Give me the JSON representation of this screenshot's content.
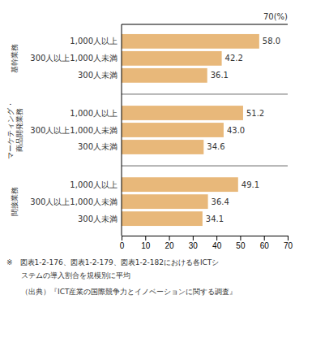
{
  "chart_data": {
    "type": "bar",
    "orientation": "horizontal",
    "groups": [
      {
        "label": "基幹業務",
        "categories": [
          "1,000人以上",
          "300人以上1,000人未満",
          "300人未満"
        ],
        "values": [
          58.0,
          42.2,
          36.1
        ],
        "value_labels": [
          "58.0",
          "42.2",
          "36.1"
        ]
      },
      {
        "label": "マーケティング・\n商品開発業務",
        "categories": [
          "1,000人以上",
          "300人以上1,000人未満",
          "300人未満"
        ],
        "values": [
          51.2,
          43.0,
          34.6
        ],
        "value_labels": [
          "51.2",
          "43.0",
          "34.6"
        ]
      },
      {
        "label": "間接業務",
        "categories": [
          "1,000人以上",
          "300人以上1,000人未満",
          "300人未満"
        ],
        "values": [
          49.1,
          36.4,
          34.1
        ],
        "value_labels": [
          "49.1",
          "36.4",
          "34.1"
        ]
      }
    ],
    "color": "#E8B87A",
    "data_labels": true,
    "xlim": [
      0,
      70
    ],
    "xticks": [
      0,
      10,
      20,
      30,
      40,
      50,
      60,
      70
    ],
    "annotations": [
      "70(%)"
    ],
    "footnotes": [
      "※　図表1-2-176、図表1-2-179、図表1-2-182における各ICTシ",
      "ステムの導入割合を規模別に平均",
      "（出典）『ICT産業の国際競争力とイノベーションに関する調査』"
    ]
  }
}
